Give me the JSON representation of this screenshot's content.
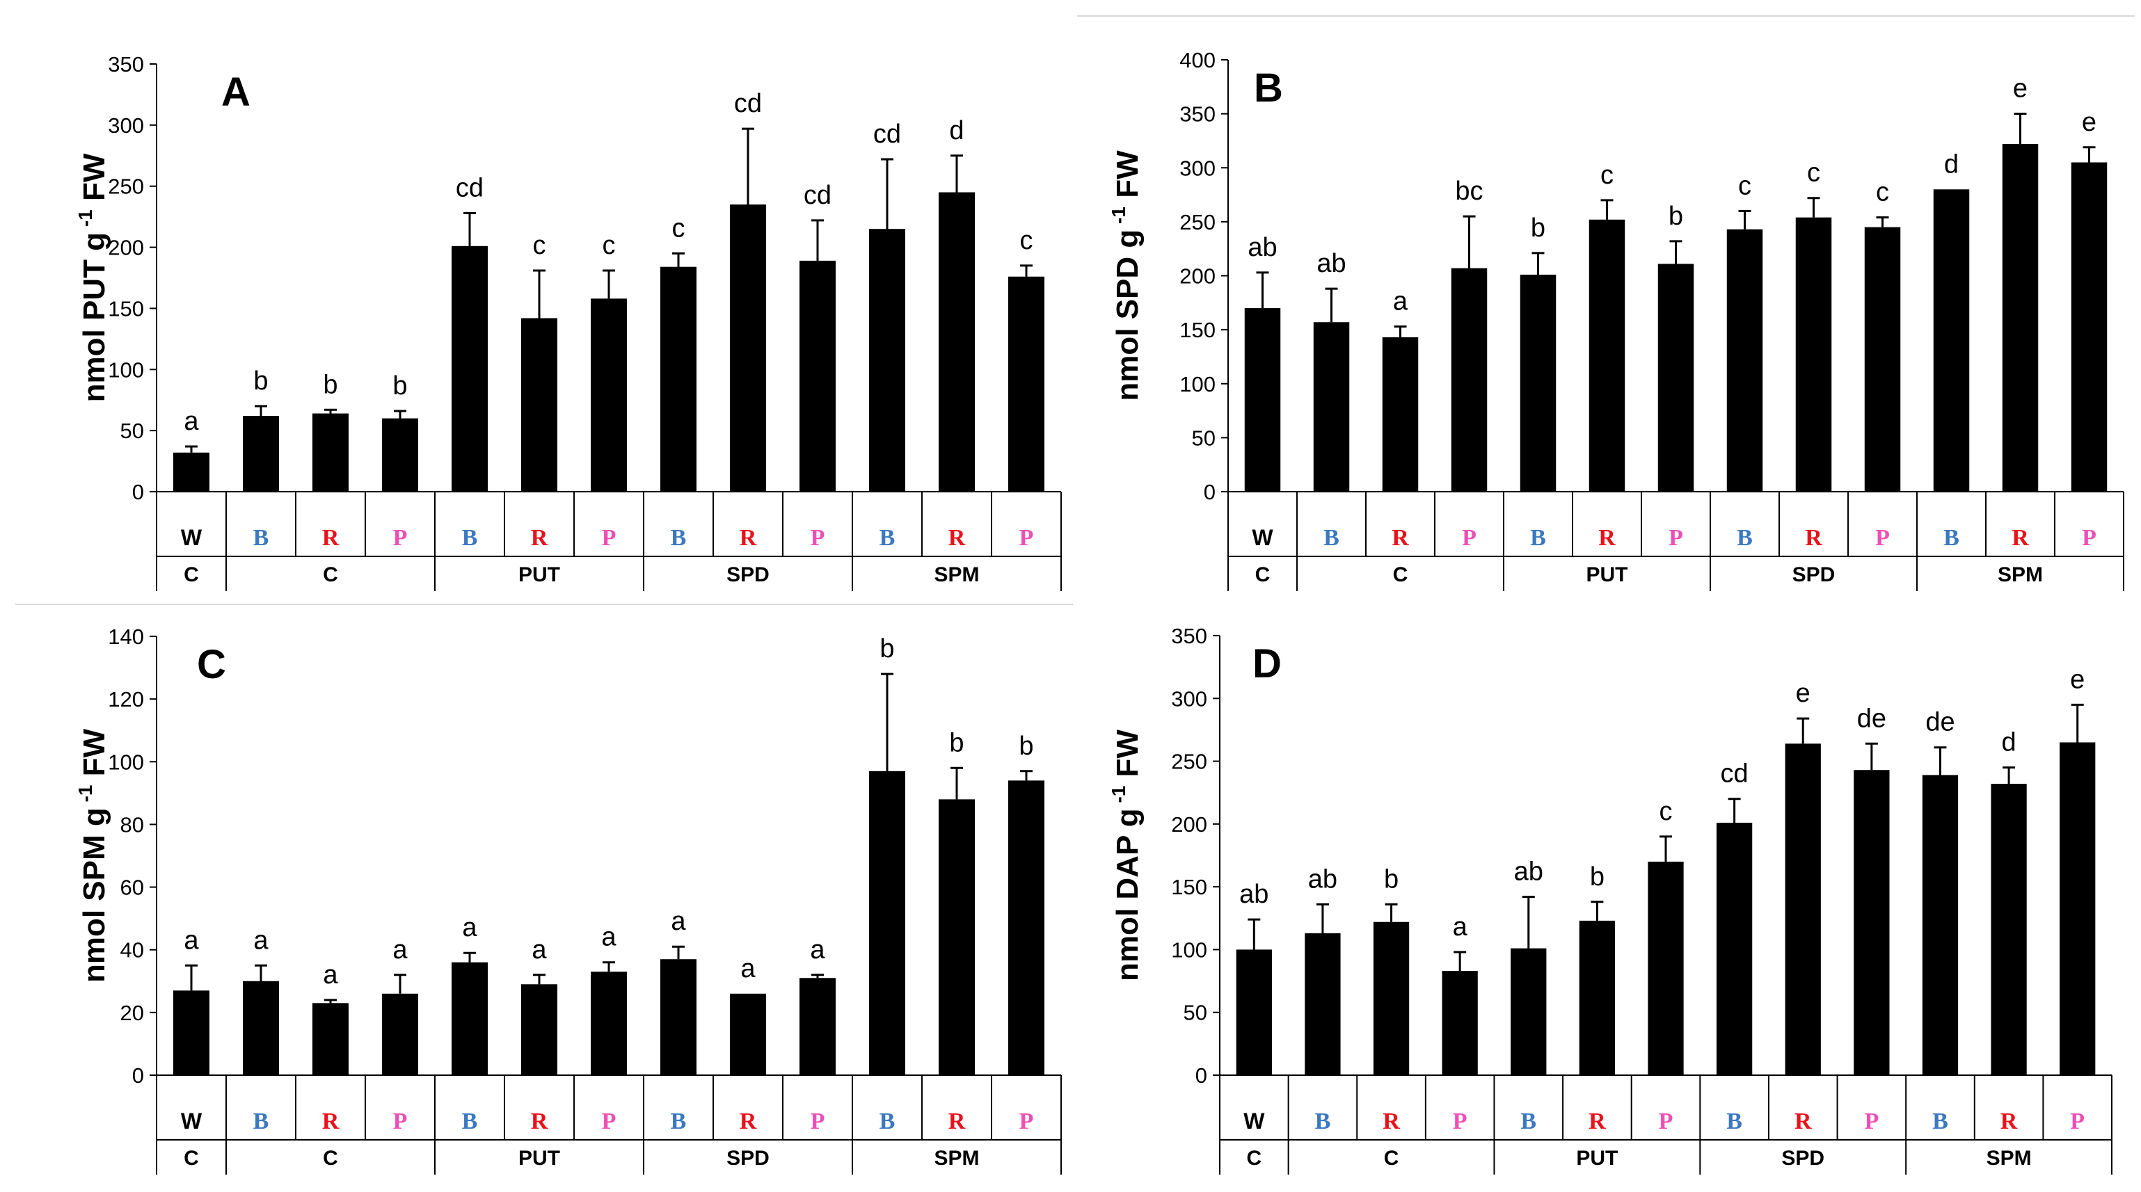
{
  "figure": {
    "panels": [
      "A",
      "B",
      "C",
      "D"
    ]
  },
  "colors": {
    "bar": "#000000",
    "W": "#000000",
    "B": "#3b78c0",
    "R": "#e8121b",
    "P": "#ee4fb6",
    "divider": "#d9d9d9"
  },
  "chart_data": [
    {
      "panel": "A",
      "type": "bar",
      "ylabel_main": "nmol PUT g",
      "ylabel_sup": "-1",
      "ylabel_tail": " FW",
      "ylim": [
        0,
        350
      ],
      "ytick_step": 50,
      "categories": [
        "W",
        "B",
        "R",
        "P",
        "B",
        "R",
        "P",
        "B",
        "R",
        "P",
        "B",
        "R",
        "P"
      ],
      "values": [
        32,
        62,
        64,
        60,
        201,
        142,
        158,
        184,
        235,
        189,
        215,
        245,
        176
      ],
      "errors": [
        5,
        8,
        3,
        6,
        27,
        39,
        23,
        11,
        62,
        33,
        57,
        30,
        9
      ],
      "letters": [
        "a",
        "b",
        "b",
        "b",
        "cd",
        "c",
        "c",
        "c",
        "cd",
        "cd",
        "cd",
        "d",
        "c"
      ],
      "groups": [
        {
          "label": "C",
          "count": 1
        },
        {
          "label": "C",
          "count": 3
        },
        {
          "label": "PUT",
          "count": 3
        },
        {
          "label": "SPD",
          "count": 3
        },
        {
          "label": "SPM",
          "count": 3
        }
      ]
    },
    {
      "panel": "B",
      "type": "bar",
      "ylabel_main": "nmol SPD g",
      "ylabel_sup": "-1",
      "ylabel_tail": " FW",
      "ylim": [
        0,
        400
      ],
      "ytick_step": 50,
      "categories": [
        "W",
        "B",
        "R",
        "P",
        "B",
        "R",
        "P",
        "B",
        "R",
        "P",
        "B",
        "R",
        "P"
      ],
      "values": [
        170,
        157,
        143,
        207,
        201,
        252,
        211,
        243,
        254,
        245,
        280,
        322,
        305
      ],
      "errors": [
        33,
        31,
        10,
        48,
        20,
        18,
        21,
        17,
        18,
        9,
        0,
        28,
        14
      ],
      "letters": [
        "ab",
        "ab",
        "a",
        "bc",
        "b",
        "c",
        "b",
        "c",
        "c",
        "c",
        "d",
        "e",
        "e"
      ],
      "groups": [
        {
          "label": "C",
          "count": 1
        },
        {
          "label": "C",
          "count": 3
        },
        {
          "label": "PUT",
          "count": 3
        },
        {
          "label": "SPD",
          "count": 3
        },
        {
          "label": "SPM",
          "count": 3
        }
      ]
    },
    {
      "panel": "C",
      "type": "bar",
      "ylabel_main": "nmol SPM g",
      "ylabel_sup": "-1",
      "ylabel_tail": " FW",
      "ylim": [
        0,
        140
      ],
      "ytick_step": 20,
      "categories": [
        "W",
        "B",
        "R",
        "P",
        "B",
        "R",
        "P",
        "B",
        "R",
        "P",
        "B",
        "R",
        "P"
      ],
      "values": [
        27,
        30,
        23,
        26,
        36,
        29,
        33,
        37,
        26,
        31,
        97,
        88,
        94
      ],
      "errors": [
        8,
        5,
        1,
        6,
        3,
        3,
        3,
        4,
        0,
        1,
        31,
        10,
        3
      ],
      "letters": [
        "a",
        "a",
        "a",
        "a",
        "a",
        "a",
        "a",
        "a",
        "a",
        "a",
        "b",
        "b",
        "b"
      ],
      "groups": [
        {
          "label": "C",
          "count": 1
        },
        {
          "label": "C",
          "count": 3
        },
        {
          "label": "PUT",
          "count": 3
        },
        {
          "label": "SPD",
          "count": 3
        },
        {
          "label": "SPM",
          "count": 3
        }
      ]
    },
    {
      "panel": "D",
      "type": "bar",
      "ylabel_main": "nmol DAP g",
      "ylabel_sup": "-1",
      "ylabel_tail": " FW",
      "ylim": [
        0,
        350
      ],
      "ytick_step": 50,
      "categories": [
        "W",
        "B",
        "R",
        "P",
        "B",
        "R",
        "P",
        "B",
        "R",
        "P",
        "B",
        "R",
        "P"
      ],
      "values": [
        100,
        113,
        122,
        83,
        101,
        123,
        170,
        201,
        264,
        243,
        239,
        232,
        265
      ],
      "errors": [
        24,
        23,
        14,
        15,
        41,
        15,
        20,
        19,
        20,
        21,
        22,
        13,
        30
      ],
      "letters": [
        "ab",
        "ab",
        "b",
        "a",
        "ab",
        "b",
        "c",
        "cd",
        "e",
        "de",
        "de",
        "d",
        "e"
      ],
      "groups": [
        {
          "label": "C",
          "count": 1
        },
        {
          "label": "C",
          "count": 3
        },
        {
          "label": "PUT",
          "count": 3
        },
        {
          "label": "SPD",
          "count": 3
        },
        {
          "label": "SPM",
          "count": 3
        }
      ]
    }
  ]
}
